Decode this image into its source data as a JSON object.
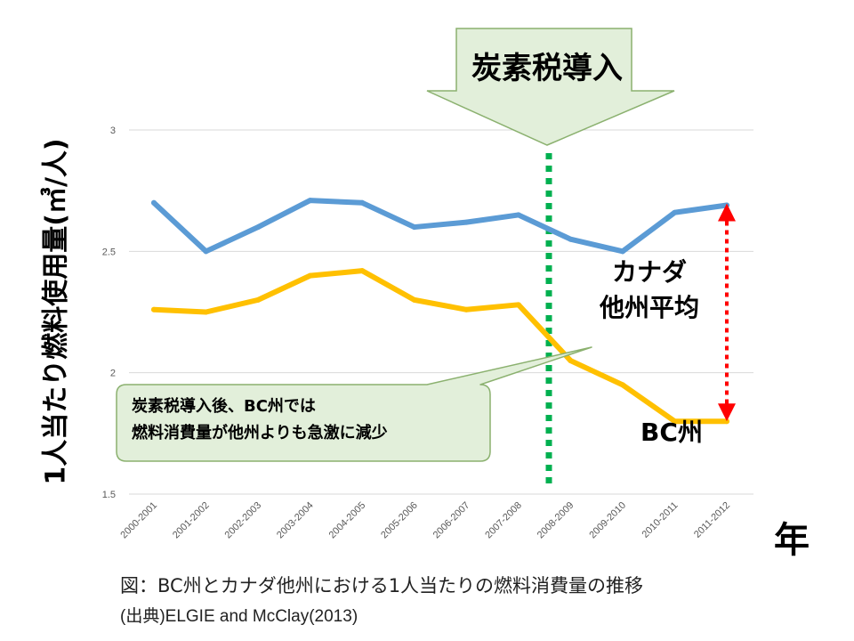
{
  "chart_data": {
    "type": "line",
    "categories": [
      "2000-2001",
      "2001-2002",
      "2002-2003",
      "2003-2004",
      "2004-2005",
      "2005-2006",
      "2006-2007",
      "2007-2008",
      "2008-2009",
      "2009-2010",
      "2010-2011",
      "2011-2012"
    ],
    "series": [
      {
        "name": "カナダ他州平均",
        "label_lines": [
          "カナダ",
          "他州平均"
        ],
        "color": "#5b9bd5",
        "values": [
          2.7,
          2.5,
          2.6,
          2.71,
          2.7,
          2.6,
          2.62,
          2.65,
          2.55,
          2.5,
          2.66,
          2.69
        ]
      },
      {
        "name": "BC州",
        "label_lines": [
          "BC州"
        ],
        "color": "#ffc000",
        "values": [
          2.26,
          2.25,
          2.3,
          2.4,
          2.42,
          2.3,
          2.26,
          2.28,
          2.05,
          1.95,
          1.8,
          1.8
        ]
      }
    ],
    "yticks": [
      "1.5",
      "2",
      "2.5",
      "3"
    ],
    "ylim": [
      1.5,
      3
    ],
    "ylabel": "1人当たり燃料使用量(㎥/人)",
    "xlabel": "年",
    "grid": true,
    "annotations": {
      "intro_banner": "炭素税導入",
      "intro_line_color": "#00b050",
      "callout_lines": [
        "炭素税導入後、BC州では",
        "燃料消費量が他州よりも急激に減少"
      ],
      "gap_arrow_color": "#ff0000"
    }
  },
  "caption": "図：BC州とカナダ他州における1人当たりの燃料消費量の推移",
  "source": "(出典)ELGIE and McClay(2013)"
}
